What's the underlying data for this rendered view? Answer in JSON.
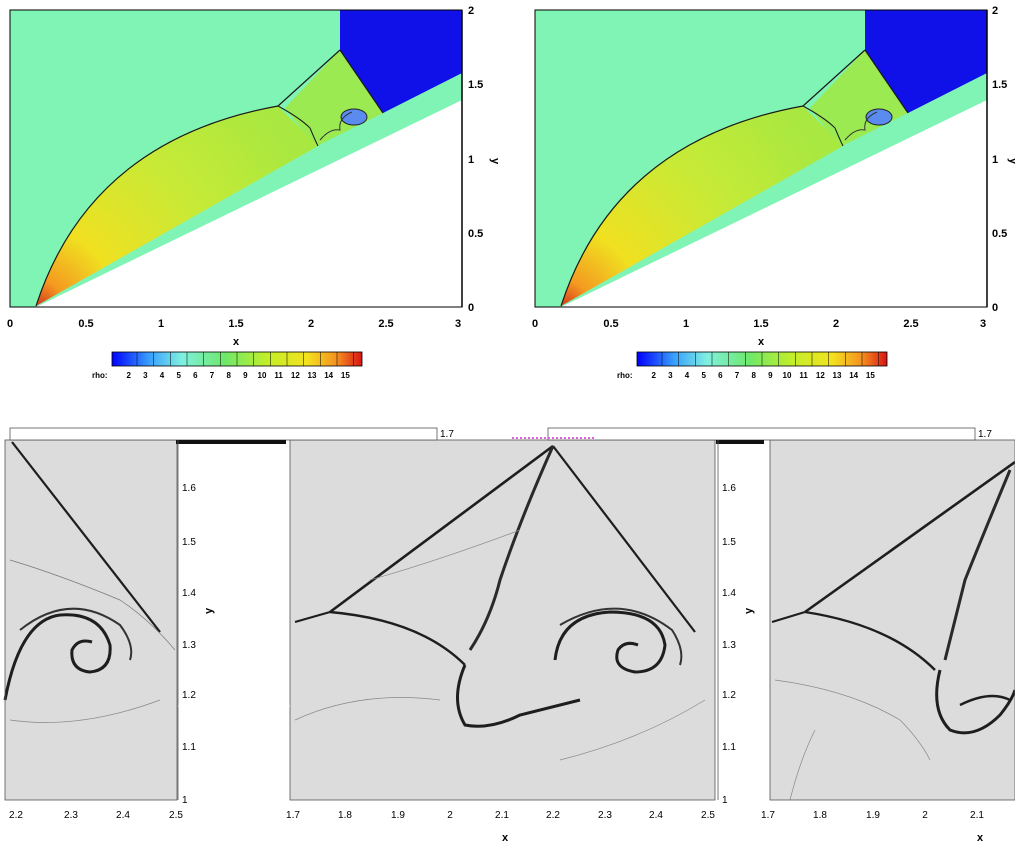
{
  "top_panels": {
    "x_label": "x",
    "y_label": "y",
    "x_ticks": [
      "0",
      "0.5",
      "1",
      "1.5",
      "2",
      "2.5",
      "3"
    ],
    "y_ticks": [
      "0",
      "0.5",
      "1",
      "1.5",
      "2"
    ],
    "colorbar_label": "rho:",
    "colorbar_ticks": [
      "2",
      "3",
      "4",
      "5",
      "6",
      "7",
      "8",
      "9",
      "10",
      "11",
      "12",
      "13",
      "14",
      "15"
    ],
    "colors": {
      "ambient": "#80f4b4",
      "region_low": "#1010e8",
      "wedge_body": "#c6e93a",
      "tip": "#d8401c"
    }
  },
  "bottom_panels": {
    "x_label": "x",
    "y_label": "y",
    "left_x_ticks": [
      "2.2",
      "2.3",
      "2.4",
      "2.5"
    ],
    "middle_x_ticks": [
      "1.7",
      "1.8",
      "1.9",
      "2",
      "2.1",
      "2.2",
      "2.3",
      "2.4",
      "2.5"
    ],
    "right_x_ticks": [
      "1.7",
      "1.8",
      "1.9",
      "2",
      "2.1"
    ],
    "y_ticks": [
      "1",
      "1.1",
      "1.2",
      "1.3",
      "1.4",
      "1.5",
      "1.6",
      "1.7"
    ],
    "background_color": "#dcdcdc"
  }
}
